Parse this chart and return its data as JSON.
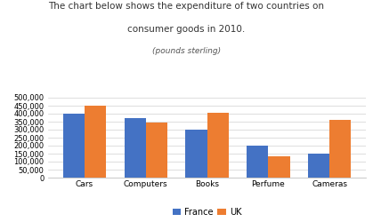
{
  "title_line1": "The chart below shows the expenditure of two countries on",
  "title_line2": "consumer goods in 2010.",
  "subtitle": "(pounds sterling)",
  "categories": [
    "Cars",
    "Computers",
    "Books",
    "Perfume",
    "Cameras"
  ],
  "france_values": [
    400000,
    375000,
    300000,
    200000,
    150000
  ],
  "uk_values": [
    450000,
    345000,
    405000,
    135000,
    360000
  ],
  "france_color": "#4472C4",
  "uk_color": "#ED7D31",
  "ylim": [
    0,
    500000
  ],
  "yticks": [
    0,
    50000,
    100000,
    150000,
    200000,
    250000,
    300000,
    350000,
    400000,
    450000,
    500000
  ],
  "legend_labels": [
    "France",
    "UK"
  ],
  "background_color": "#ffffff",
  "bar_width": 0.35
}
